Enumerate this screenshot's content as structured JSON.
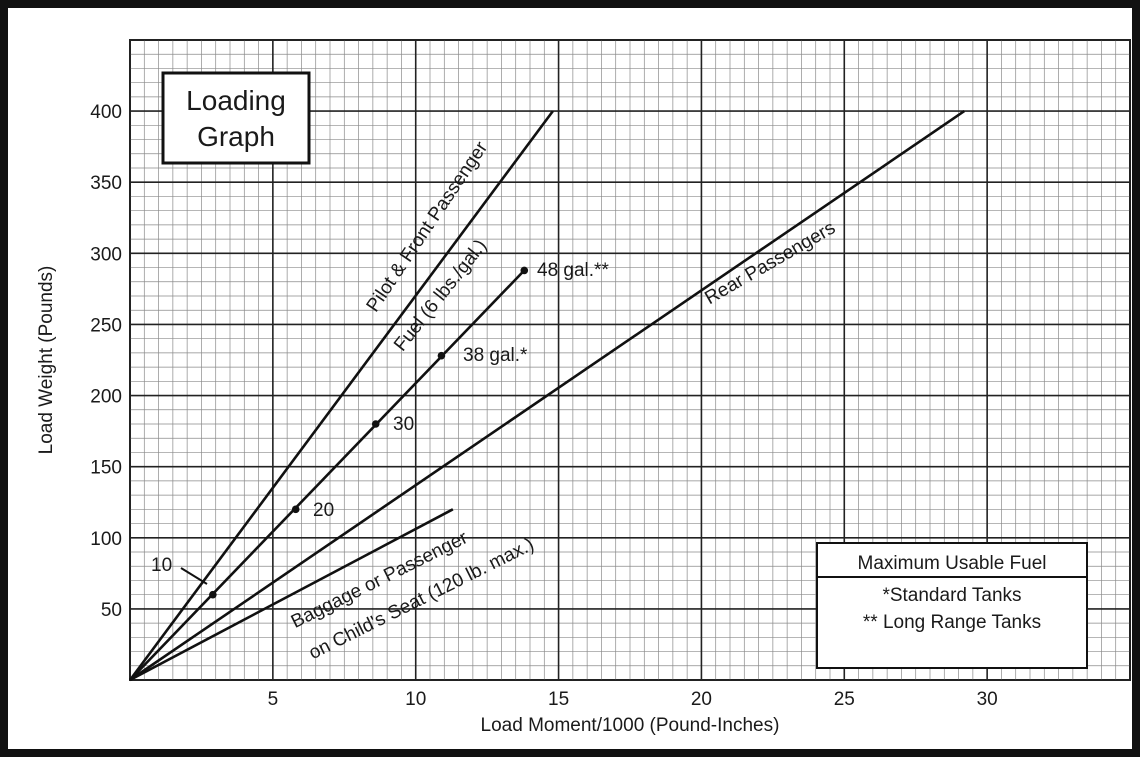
{
  "chart_data": {
    "type": "line",
    "title": "Loading Graph",
    "title_lines": [
      "Loading",
      "Graph"
    ],
    "xlabel": "Load Moment/1000 (Pound-Inches)",
    "ylabel": "Load Weight (Pounds)",
    "xlim": [
      0,
      35
    ],
    "ylim": [
      0,
      450
    ],
    "x_ticks": [
      5,
      10,
      15,
      20,
      25,
      30
    ],
    "y_ticks": [
      50,
      100,
      150,
      200,
      250,
      300,
      350,
      400
    ],
    "grid": true,
    "series": [
      {
        "name": "Pilot & Front Passenger",
        "x": [
          0,
          14.8
        ],
        "y": [
          0,
          400
        ]
      },
      {
        "name": "Fuel (6 lbs./gal.)",
        "x": [
          0,
          13.8
        ],
        "y": [
          0,
          288
        ]
      },
      {
        "name": "Rear Passengers",
        "x": [
          0,
          29.2
        ],
        "y": [
          0,
          400
        ]
      },
      {
        "name": "Baggage or Passenger on Child's Seat (120 lb. max.)",
        "x": [
          0,
          11.3
        ],
        "y": [
          0,
          120
        ]
      }
    ],
    "fuel_marks": [
      {
        "label": "10",
        "x": 2.9,
        "y": 60
      },
      {
        "label": "20",
        "x": 5.8,
        "y": 120
      },
      {
        "label": "30",
        "x": 8.6,
        "y": 180
      },
      {
        "label": "38 gal.*",
        "x": 10.9,
        "y": 228
      },
      {
        "label": "48 gal.**",
        "x": 13.8,
        "y": 288
      }
    ],
    "series_labels": {
      "pilot": "Pilot & Front Passenger",
      "fuel": "Fuel (6 lbs./gal.)",
      "rear": "Rear Passengers",
      "baggage_1": "Baggage or Passenger",
      "baggage_2": "on Child's Seat (120 lb. max.)"
    },
    "legend": {
      "header": "Maximum Usable Fuel",
      "line1": "*Standard Tanks",
      "line2": "** Long Range Tanks"
    }
  }
}
